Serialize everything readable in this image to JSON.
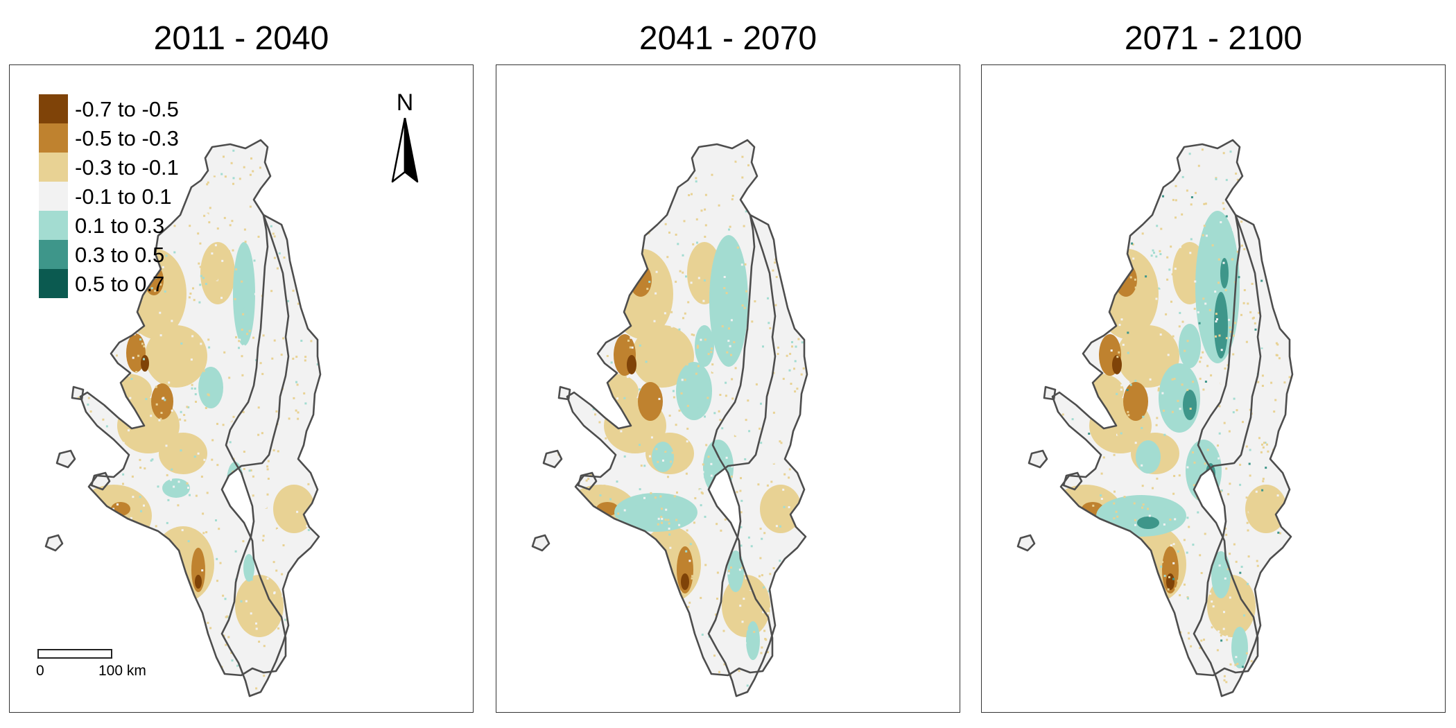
{
  "panels": [
    {
      "title": "2011 - 2040"
    },
    {
      "title": "2041 - 2070"
    },
    {
      "title": "2071 - 2100"
    }
  ],
  "legend": [
    {
      "label": "-0.7 to -0.5",
      "color": "#7f4308"
    },
    {
      "label": "-0.5 to -0.3",
      "color": "#bf822f"
    },
    {
      "label": "-0.3 to -0.1",
      "color": "#e8d294"
    },
    {
      "label": "-0.1 to 0.1",
      "color": "#f2f2f2"
    },
    {
      "label": "0.1 to 0.3",
      "color": "#a3dcd1"
    },
    {
      "label": "0.3 to 0.5",
      "color": "#3e968a"
    },
    {
      "label": "0.5 to 0.7",
      "color": "#0b5a50"
    }
  ],
  "north_arrow": {
    "label": "N"
  },
  "scale_bar": {
    "start_label": "0",
    "end_label": "100 km"
  },
  "outline_color": "#4d4d4d"
}
